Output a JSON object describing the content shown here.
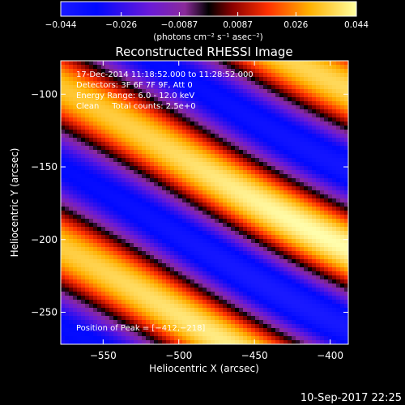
{
  "chart_data": {
    "type": "heatmap",
    "title": "Reconstructed RHESSI Image",
    "xlabel": "Heliocentric X (arcsec)",
    "ylabel": "Heliocentric Y (arcsec)",
    "xlim": [
      -578,
      -388
    ],
    "ylim": [
      -272,
      -77
    ],
    "x_ticks": [
      -550,
      -500,
      -450,
      -400
    ],
    "y_ticks": [
      -100,
      -150,
      -200,
      -250
    ],
    "x_tick_labels": [
      "−550",
      "−500",
      "−450",
      "−400"
    ],
    "y_tick_labels": [
      "−100",
      "−150",
      "−200",
      "−250"
    ],
    "colorbar": {
      "range": [
        -0.044,
        0.044
      ],
      "ticks": [
        -0.044,
        -0.026,
        -0.0087,
        0.0087,
        0.026,
        0.044
      ],
      "tick_labels": [
        "−0.044",
        "−0.026",
        "−0.0087",
        "0.0087",
        "0.026",
        "0.044"
      ],
      "units": "(photons cm⁻² s⁻¹ asec⁻²)"
    },
    "annotations": {
      "time_range": "17-Dec-2014 11:18:52.000 to 11:28:52.000",
      "detectors": "Detectors: 3F 6F 7F 9F, Att 0",
      "energy_range": "Energy Range: 6.0 - 12.0 keV",
      "method": "Clean     Total counts: 2.5e+0",
      "peak": "Position of Peak = [−412,−218]"
    },
    "peak_position": [
      -412,
      -218
    ],
    "colormap": "rhessi-heat"
  },
  "footer": {
    "timestamp": "10-Sep-2017 22:25"
  }
}
